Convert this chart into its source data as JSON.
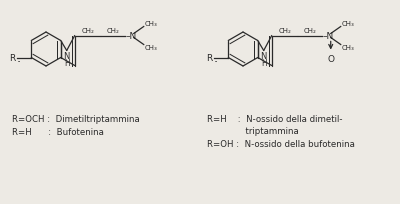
{
  "bg_color": "#edeae4",
  "line_color": "#2a2a2a",
  "text_color": "#2a2a2a",
  "font_size": 6.5,
  "label_font_size": 6.2,
  "left_label1": "R=OCH :  Dimetiltriptammina",
  "left_label2": "R=H      :  Bufotenina",
  "right_label1": "R=H    :  N-ossido della dimetil-",
  "right_label2": "              triptammina",
  "right_label3": "R=OH :  N-ossido della bufotenina"
}
